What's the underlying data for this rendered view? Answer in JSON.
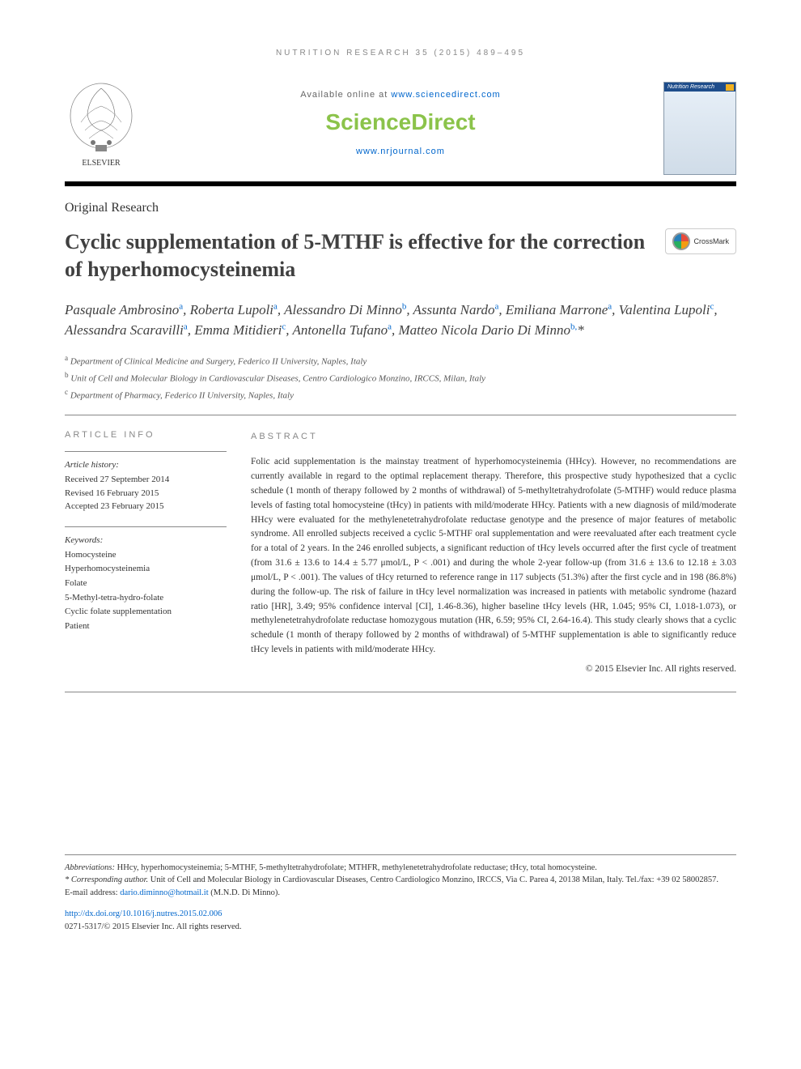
{
  "running_head": "NUTRITION RESEARCH 35 (2015) 489–495",
  "masthead": {
    "available_text": "Available online at ",
    "available_url": "www.sciencedirect.com",
    "brand": "ScienceDirect",
    "journal_url": "www.nrjournal.com",
    "elsevier_label": "ELSEVIER",
    "cover_title": "Nutrition Research"
  },
  "article_type": "Original Research",
  "title": "Cyclic supplementation of 5-MTHF is effective for the correction of hyperhomocysteinemia",
  "crossmark_label": "CrossMark",
  "authors_html": "Pasquale Ambrosino<sup>a</sup>, Roberta Lupoli<sup>a</sup>, Alessandro Di Minno<sup>b</sup>, Assunta Nardo<sup>a</sup>, Emiliana Marrone<sup>a</sup>, Valentina Lupoli<sup>c</sup>, Alessandra Scaravilli<sup>a</sup>, Emma Mitidieri<sup>c</sup>, Antonella Tufano<sup>a</sup>, Matteo Nicola Dario Di Minno<sup>b,</sup>*",
  "affiliations": [
    {
      "sup": "a",
      "text": "Department of Clinical Medicine and Surgery, Federico II University, Naples, Italy"
    },
    {
      "sup": "b",
      "text": "Unit of Cell and Molecular Biology in Cardiovascular Diseases, Centro Cardiologico Monzino, IRCCS, Milan, Italy"
    },
    {
      "sup": "c",
      "text": "Department of Pharmacy, Federico II University, Naples, Italy"
    }
  ],
  "article_info": {
    "label": "ARTICLE INFO",
    "history_head": "Article history:",
    "history": [
      "Received 27 September 2014",
      "Revised 16 February 2015",
      "Accepted 23 February 2015"
    ],
    "keywords_head": "Keywords:",
    "keywords": [
      "Homocysteine",
      "Hyperhomocysteinemia",
      "Folate",
      "5-Methyl-tetra-hydro-folate",
      "Cyclic folate supplementation",
      "Patient"
    ]
  },
  "abstract": {
    "label": "ABSTRACT",
    "text": "Folic acid supplementation is the mainstay treatment of hyperhomocysteinemia (HHcy). However, no recommendations are currently available in regard to the optimal replacement therapy. Therefore, this prospective study hypothesized that a cyclic schedule (1 month of therapy followed by 2 months of withdrawal) of 5-methyltetrahydrofolate (5-MTHF) would reduce plasma levels of fasting total homocysteine (tHcy) in patients with mild/moderate HHcy. Patients with a new diagnosis of mild/moderate HHcy were evaluated for the methylenetetrahydrofolate reductase genotype and the presence of major features of metabolic syndrome. All enrolled subjects received a cyclic 5-MTHF oral supplementation and were reevaluated after each treatment cycle for a total of 2 years. In the 246 enrolled subjects, a significant reduction of tHcy levels occurred after the first cycle of treatment (from 31.6 ± 13.6 to 14.4 ± 5.77 μmol/L, P < .001) and during the whole 2-year follow-up (from 31.6 ± 13.6 to 12.18 ± 3.03 μmol/L, P < .001). The values of tHcy returned to reference range in 117 subjects (51.3%) after the first cycle and in 198 (86.8%) during the follow-up. The risk of failure in tHcy level normalization was increased in patients with metabolic syndrome (hazard ratio [HR], 3.49; 95% confidence interval [CI], 1.46-8.36), higher baseline tHcy levels (HR, 1.045; 95% CI, 1.018-1.073), or methylenetetrahydrofolate reductase homozygous mutation (HR, 6.59; 95% CI, 2.64-16.4). This study clearly shows that a cyclic schedule (1 month of therapy followed by 2 months of withdrawal) of 5-MTHF supplementation is able to significantly reduce tHcy levels in patients with mild/moderate HHcy.",
    "copyright": "© 2015 Elsevier Inc. All rights reserved."
  },
  "footnotes": {
    "abbrev_label": "Abbreviations:",
    "abbrev_text": " HHcy, hyperhomocysteinemia; 5-MTHF, 5-methyltetrahydrofolate; MTHFR, methylenetetrahydrofolate reductase; tHcy, total homocysteine.",
    "corr_label": "* Corresponding author.",
    "corr_text": " Unit of Cell and Molecular Biology in Cardiovascular Diseases, Centro Cardiologico Monzino, IRCCS, Via C. Parea 4, 20138 Milan, Italy. Tel./fax: +39 02 58002857.",
    "email_label": "E-mail address: ",
    "email": "dario.diminno@hotmail.it",
    "email_suffix": " (M.N.D. Di Minno)."
  },
  "doi": {
    "url": "http://dx.doi.org/10.1016/j.nutres.2015.02.006",
    "issn_line": "0271-5317/© 2015 Elsevier Inc. All rights reserved."
  }
}
